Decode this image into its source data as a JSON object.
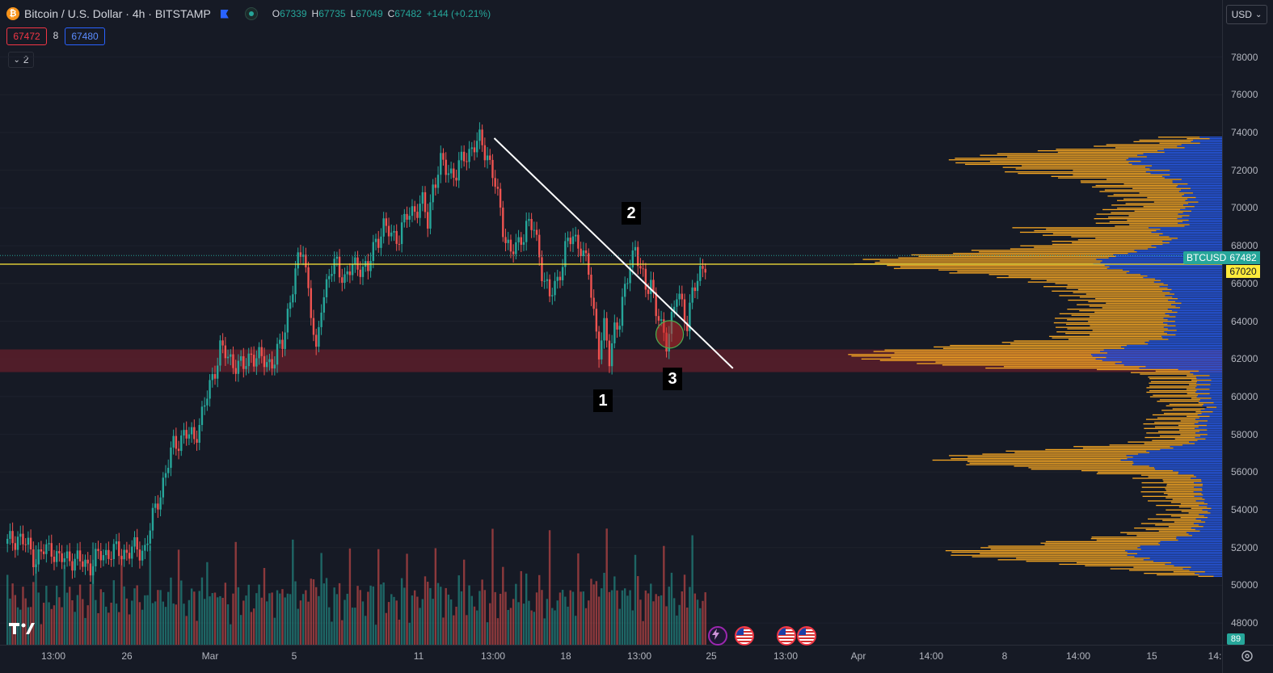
{
  "header": {
    "logo_glyph": "₿",
    "title": "Bitcoin / U.S. Dollar · 4h · BITSTAMP",
    "ohlc": [
      {
        "k": "O",
        "v": "67339"
      },
      {
        "k": "H",
        "v": "67735"
      },
      {
        "k": "L",
        "v": "67049"
      },
      {
        "k": "C",
        "v": "67482"
      }
    ],
    "change": "+144 (+0.21%)",
    "bid": "67472",
    "spread": "8",
    "ask": "67480",
    "indicators_count": "2",
    "currency": "USD"
  },
  "price_axis": {
    "labels": [
      "78000",
      "76000",
      "74000",
      "72000",
      "70000",
      "68000",
      "66000",
      "64000",
      "62000",
      "60000",
      "58000",
      "56000",
      "54000",
      "52000",
      "50000",
      "48000"
    ],
    "symbol_tag": "BTCUSD",
    "current_price": "67482",
    "level_price": "67020"
  },
  "time_axis": {
    "labels": [
      "13:00",
      "26",
      "Mar",
      "5",
      "11",
      "13:00",
      "18",
      "13:00",
      "25",
      "13:00",
      "Apr",
      "14:00",
      "8",
      "14:00",
      "15",
      "14:"
    ]
  },
  "annotations": [
    "1",
    "2",
    "3"
  ],
  "bottom": {
    "badge": "89"
  },
  "colors": {
    "background": "#161a25",
    "up": "#26a69a",
    "down": "#ef5350",
    "level_line": "#ffeb3b",
    "zone": "#5a1e2a",
    "volume_profile": "#f5a623",
    "volume_profile_value_area": "#2962ff"
  },
  "chart_data": {
    "type": "candlestick",
    "symbol": "BTCUSD",
    "interval": "4h",
    "exchange": "BITSTAMP",
    "ylim": [
      48000,
      79000
    ],
    "close_path": [
      [
        0,
        52200
      ],
      [
        4,
        52600
      ],
      [
        8,
        52000
      ],
      [
        11,
        51400
      ],
      [
        14,
        51800
      ],
      [
        17,
        52000
      ],
      [
        20,
        51300
      ],
      [
        24,
        51500
      ],
      [
        28,
        51200
      ],
      [
        32,
        51100
      ],
      [
        36,
        51600
      ],
      [
        40,
        51800
      ],
      [
        44,
        51700
      ],
      [
        48,
        51900
      ],
      [
        51,
        51800
      ],
      [
        53,
        52000
      ],
      [
        56,
        53500
      ],
      [
        60,
        55500
      ],
      [
        64,
        57400
      ],
      [
        68,
        58000
      ],
      [
        72,
        57800
      ],
      [
        76,
        59500
      ],
      [
        79,
        61000
      ],
      [
        82,
        62600
      ],
      [
        85,
        62000
      ],
      [
        88,
        61800
      ],
      [
        91,
        61500
      ],
      [
        94,
        62300
      ],
      [
        97,
        62000
      ],
      [
        100,
        61800
      ],
      [
        103,
        62000
      ],
      [
        106,
        62800
      ],
      [
        108,
        64500
      ],
      [
        111,
        66500
      ],
      [
        114,
        68000
      ],
      [
        117,
        64500
      ],
      [
        119,
        62000
      ],
      [
        121,
        65000
      ],
      [
        124,
        66500
      ],
      [
        127,
        67000
      ],
      [
        130,
        66300
      ],
      [
        133,
        66800
      ],
      [
        136,
        67000
      ],
      [
        139,
        66700
      ],
      [
        142,
        68300
      ],
      [
        145,
        69000
      ],
      [
        148,
        68500
      ],
      [
        151,
        68600
      ],
      [
        154,
        69500
      ],
      [
        157,
        70000
      ],
      [
        160,
        70200
      ],
      [
        162,
        69200
      ],
      [
        164,
        71200
      ],
      [
        167,
        72300
      ],
      [
        170,
        72000
      ],
      [
        173,
        71800
      ],
      [
        176,
        72700
      ],
      [
        179,
        73200
      ],
      [
        182,
        73500
      ],
      [
        185,
        72900
      ],
      [
        188,
        71200
      ],
      [
        191,
        69000
      ],
      [
        194,
        67600
      ],
      [
        197,
        68000
      ],
      [
        200,
        69200
      ],
      [
        203,
        68800
      ],
      [
        206,
        66800
      ],
      [
        209,
        65200
      ],
      [
        212,
        66200
      ],
      [
        215,
        67800
      ],
      [
        218,
        68500
      ],
      [
        221,
        68000
      ],
      [
        224,
        66500
      ],
      [
        226,
        64500
      ],
      [
        228,
        62500
      ],
      [
        230,
        63500
      ],
      [
        232,
        62000
      ],
      [
        234,
        63800
      ],
      [
        236,
        64000
      ],
      [
        238,
        65500
      ],
      [
        240,
        67200
      ],
      [
        242,
        68000
      ],
      [
        244,
        66500
      ],
      [
        246,
        65800
      ],
      [
        248,
        66200
      ],
      [
        250,
        64500
      ],
      [
        252,
        63500
      ],
      [
        254,
        63000
      ],
      [
        256,
        64200
      ],
      [
        258,
        65300
      ],
      [
        260,
        64800
      ],
      [
        262,
        64000
      ],
      [
        264,
        65500
      ],
      [
        266,
        66000
      ],
      [
        268,
        67000
      ],
      [
        270,
        67482
      ]
    ],
    "horizontal_level": 67020,
    "support_zone": [
      61300,
      62500
    ],
    "trendline": {
      "from": [
        188,
        73700
      ],
      "to": [
        280,
        61500
      ]
    },
    "highlight_circle": {
      "x": 255,
      "y": 63300
    },
    "labels": [
      {
        "text": "1",
        "x": 233,
        "y": 60000
      },
      {
        "text": "2",
        "x": 241,
        "y": 70100
      },
      {
        "text": "3",
        "x": 260,
        "y": 61000
      }
    ],
    "volume_profile_peak_prices": [
      51800,
      56700,
      62200,
      67100,
      72500
    ]
  }
}
